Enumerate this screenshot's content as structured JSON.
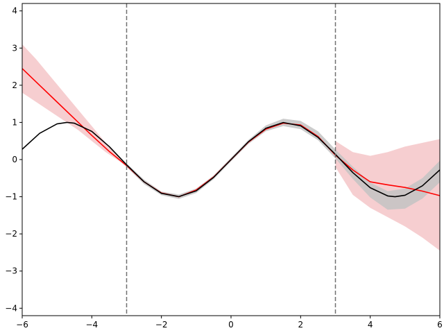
{
  "chart_data": {
    "type": "line",
    "title": "",
    "xlabel": "",
    "ylabel": "",
    "xlim": [
      -6,
      6
    ],
    "ylim": [
      -4.2,
      4.2
    ],
    "grid": false,
    "legend": "none",
    "x_ticks": [
      -6,
      -4,
      -2,
      0,
      2,
      4,
      6
    ],
    "x_tick_labels": [
      "−6",
      "−4",
      "−2",
      "0",
      "2",
      "4",
      "6"
    ],
    "y_ticks": [
      -4,
      -3,
      -2,
      -1,
      0,
      1,
      2,
      3,
      4
    ],
    "y_tick_labels": [
      "−4",
      "−3",
      "−2",
      "−1",
      "0",
      "1",
      "2",
      "3",
      "4"
    ],
    "vertical_lines": [
      {
        "x": -3,
        "style": "dashed",
        "color": "#707070"
      },
      {
        "x": 3,
        "style": "dashed",
        "color": "#707070"
      }
    ],
    "series": [
      {
        "kind": "band",
        "color": "#f5c6c8",
        "x": [
          -6,
          -5.6,
          -5.2,
          -4.8,
          -4.4,
          -4,
          -3.6,
          -3.2,
          -3
        ],
        "lower": [
          1.8,
          1.55,
          1.3,
          1.05,
          0.8,
          0.5,
          0.2,
          -0.05,
          -0.2
        ],
        "upper": [
          3.1,
          2.7,
          2.25,
          1.8,
          1.35,
          0.9,
          0.45,
          0.05,
          -0.15
        ]
      },
      {
        "kind": "band",
        "color": "#f5c6c8",
        "x": [
          3,
          3.5,
          4,
          4.5,
          5,
          5.5,
          6
        ],
        "lower": [
          -0.2,
          -0.95,
          -1.3,
          -1.55,
          -1.8,
          -2.1,
          -2.45
        ],
        "upper": [
          0.5,
          0.2,
          0.1,
          0.2,
          0.35,
          0.45,
          0.55
        ]
      },
      {
        "kind": "band",
        "color": "#c3c3c3",
        "x": [
          -3,
          -2.5,
          -2,
          -1.5,
          -1,
          -0.5,
          0,
          0.5,
          1,
          1.5,
          2,
          2.5,
          3,
          3.5,
          4,
          4.5,
          5,
          5.5,
          6
        ],
        "lower": [
          -0.2,
          -0.66,
          -0.96,
          -1.06,
          -0.9,
          -0.53,
          -0.05,
          0.42,
          0.76,
          0.9,
          0.82,
          0.52,
          0.03,
          -0.52,
          -1.02,
          -1.35,
          -1.32,
          -1.05,
          -0.61
        ],
        "upper": [
          -0.1,
          -0.54,
          -0.86,
          -0.94,
          -0.78,
          -0.43,
          0.05,
          0.53,
          0.92,
          1.1,
          1.04,
          0.76,
          0.27,
          -0.19,
          -0.62,
          -0.85,
          -0.78,
          -0.5,
          -0.03
        ]
      },
      {
        "kind": "line",
        "color": "#ff0000",
        "x": [
          -6,
          -5.5,
          -5,
          -4.5,
          -4,
          -3.5,
          -3,
          -2.5,
          -2,
          -1.5,
          -1,
          -0.5,
          0,
          0.5,
          1,
          1.5,
          2,
          2.5,
          3,
          3.5,
          4,
          4.5,
          5,
          5.5,
          6
        ],
        "y": [
          2.45,
          2.0,
          1.55,
          1.1,
          0.65,
          0.22,
          -0.16,
          -0.6,
          -0.9,
          -1.0,
          -0.82,
          -0.47,
          0.0,
          0.47,
          0.82,
          0.98,
          0.93,
          0.62,
          0.12,
          -0.28,
          -0.6,
          -0.68,
          -0.75,
          -0.85,
          -0.97
        ]
      },
      {
        "kind": "line",
        "color": "#000000",
        "x": [
          -6,
          -5.5,
          -5,
          -4.712,
          -4.5,
          -4,
          -3.5,
          -3,
          -2.5,
          -2,
          -1.5,
          -1,
          -0.5,
          0,
          0.5,
          1,
          1.5,
          2,
          2.5,
          3,
          3.5,
          4,
          4.5,
          4.712,
          5,
          5.5,
          6
        ],
        "y": [
          0.279,
          0.706,
          0.959,
          1.0,
          0.978,
          0.757,
          0.351,
          -0.141,
          -0.598,
          -0.909,
          -0.997,
          -0.841,
          -0.479,
          0.0,
          0.479,
          0.841,
          0.997,
          0.909,
          0.598,
          0.141,
          -0.351,
          -0.757,
          -0.978,
          -1.0,
          -0.959,
          -0.706,
          -0.279
        ]
      }
    ]
  }
}
